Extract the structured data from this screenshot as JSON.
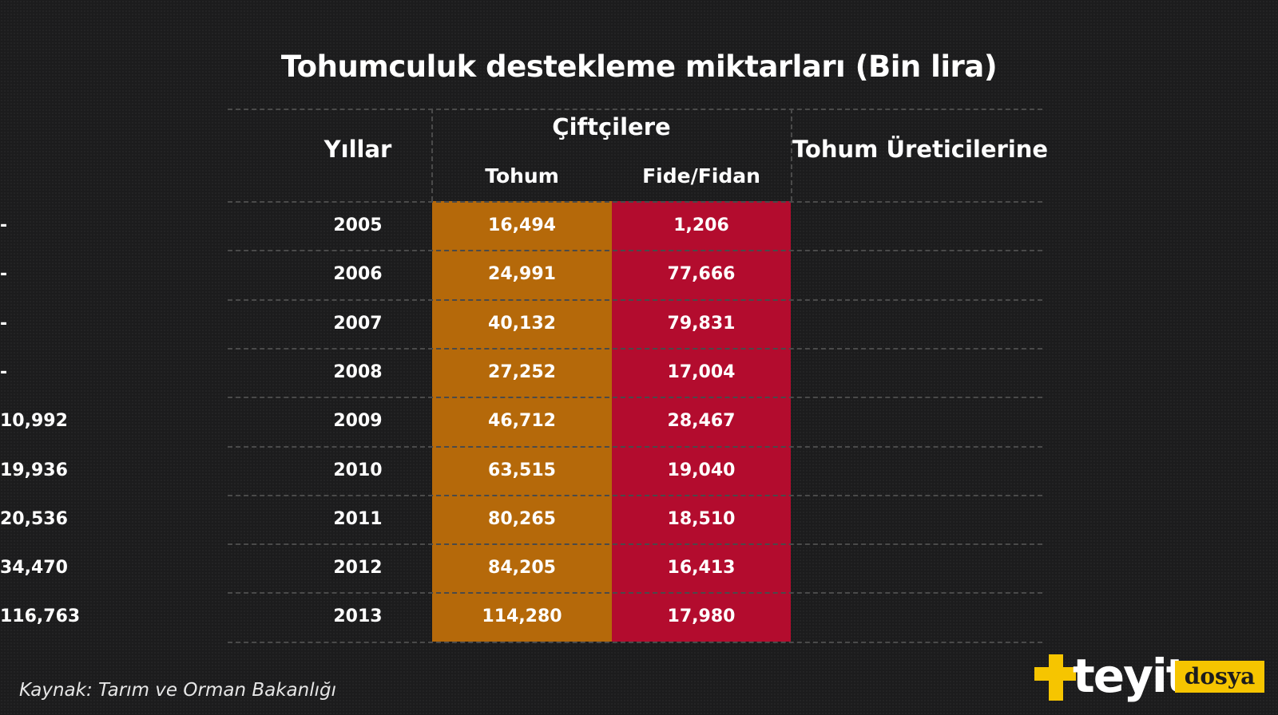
{
  "chart_data": {
    "type": "table",
    "title": "Tohumculuk destekleme miktarları (Bin lira)",
    "headers": {
      "years": "Yıllar",
      "group": "Çiftçilere",
      "tohum": "Tohum",
      "fide": "Fide/Fidan",
      "uretici": "Tohum Üreticilerine"
    },
    "rows": [
      {
        "year": "2005",
        "tohum": "16,494",
        "fide": "1,206",
        "uretici": "-"
      },
      {
        "year": "2006",
        "tohum": "24,991",
        "fide": "77,666",
        "uretici": "-"
      },
      {
        "year": "2007",
        "tohum": "40,132",
        "fide": "79,831",
        "uretici": "-"
      },
      {
        "year": "2008",
        "tohum": "27,252",
        "fide": "17,004",
        "uretici": "-"
      },
      {
        "year": "2009",
        "tohum": "46,712",
        "fide": "28,467",
        "uretici": "10,992"
      },
      {
        "year": "2010",
        "tohum": "63,515",
        "fide": "19,040",
        "uretici": "19,936"
      },
      {
        "year": "2011",
        "tohum": "80,265",
        "fide": "18,510",
        "uretici": "20,536"
      },
      {
        "year": "2012",
        "tohum": "84,205",
        "fide": "16,413",
        "uretici": "34,470"
      },
      {
        "year": "2013",
        "tohum": "114,280",
        "fide": "17,980",
        "uretici": "116,763"
      }
    ]
  },
  "source": "Kaynak:  Tarım ve Orman Bakanlığı",
  "logo": {
    "text": "teyit",
    "badge": "dosya"
  },
  "colors": {
    "background": "#1c1c1d",
    "tohum_column": "#b5690a",
    "fide_column": "#b30c2e",
    "logo_accent": "#f6c500"
  }
}
